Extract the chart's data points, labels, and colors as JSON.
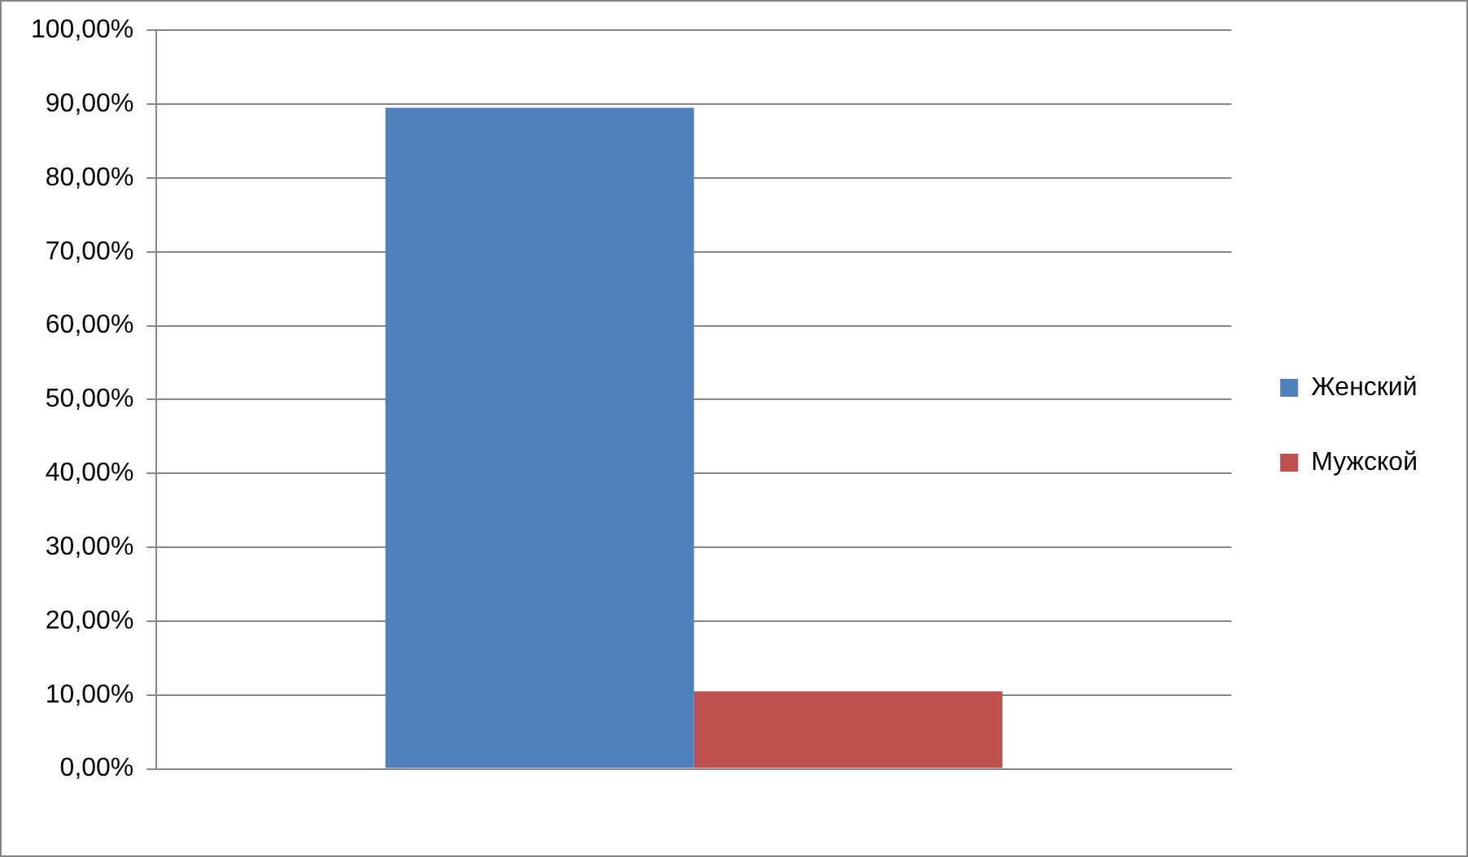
{
  "chart_data": {
    "type": "bar",
    "categories": [
      null
    ],
    "series": [
      {
        "name": "Женский",
        "color": "#4f81bd",
        "values": [
          89.5
        ]
      },
      {
        "name": "Мужской",
        "color": "#c0504d",
        "values": [
          10.5
        ]
      }
    ],
    "ylim": [
      0,
      100
    ],
    "yticks": [
      {
        "value": 0,
        "label": "0,00%"
      },
      {
        "value": 10,
        "label": "10,00%"
      },
      {
        "value": 20,
        "label": "20,00%"
      },
      {
        "value": 30,
        "label": "30,00%"
      },
      {
        "value": 40,
        "label": "40,00%"
      },
      {
        "value": 50,
        "label": "50,00%"
      },
      {
        "value": 60,
        "label": "60,00%"
      },
      {
        "value": 70,
        "label": "70,00%"
      },
      {
        "value": 80,
        "label": "80,00%"
      },
      {
        "value": 90,
        "label": "90,00%"
      },
      {
        "value": 100,
        "label": "100,00%"
      }
    ],
    "grid": "y",
    "legend": "right"
  }
}
